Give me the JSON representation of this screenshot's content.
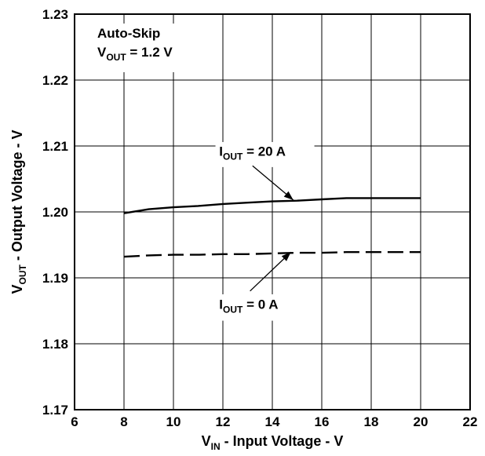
{
  "chart_data": {
    "type": "line",
    "title": "",
    "xlabel": {
      "main": "V",
      "sub": "IN",
      "rest": " - Input Voltage - V"
    },
    "ylabel": {
      "main": "V",
      "sub": "OUT",
      "rest": " - Output Voltage - V"
    },
    "xlim": [
      6,
      22
    ],
    "ylim": [
      1.17,
      1.23
    ],
    "xticks": [
      6,
      8,
      10,
      12,
      14,
      16,
      18,
      20,
      22
    ],
    "yticks": [
      1.17,
      1.18,
      1.19,
      1.2,
      1.21,
      1.22,
      1.23
    ],
    "ytick_labels": [
      "1.17",
      "1.18",
      "1.19",
      "1.20",
      "1.21",
      "1.22",
      "1.23"
    ],
    "grid": true,
    "condition": {
      "line1": "Auto-Skip",
      "line2_main": "V",
      "line2_sub": "OUT",
      "line2_rest": " = 1.2 V"
    },
    "series": [
      {
        "label_main": "I",
        "label_sub": "OUT",
        "label_rest": " = 20 A",
        "style": "solid",
        "x": [
          8,
          9,
          10,
          11,
          12,
          13,
          14,
          15,
          16,
          17,
          18,
          19,
          20
        ],
        "y": [
          1.1998,
          1.2004,
          1.2007,
          1.2009,
          1.2012,
          1.2014,
          1.2016,
          1.2017,
          1.2019,
          1.2021,
          1.2021,
          1.2021,
          1.2021
        ]
      },
      {
        "label_main": "I",
        "label_sub": "OUT",
        "label_rest": " = 0 A",
        "style": "dashed",
        "x": [
          8,
          9,
          10,
          11,
          12,
          13,
          14,
          15,
          16,
          17,
          18,
          19,
          20
        ],
        "y": [
          1.1932,
          1.1934,
          1.1935,
          1.1935,
          1.1936,
          1.1936,
          1.1937,
          1.1938,
          1.1938,
          1.1939,
          1.1939,
          1.1939,
          1.1939
        ]
      }
    ]
  }
}
